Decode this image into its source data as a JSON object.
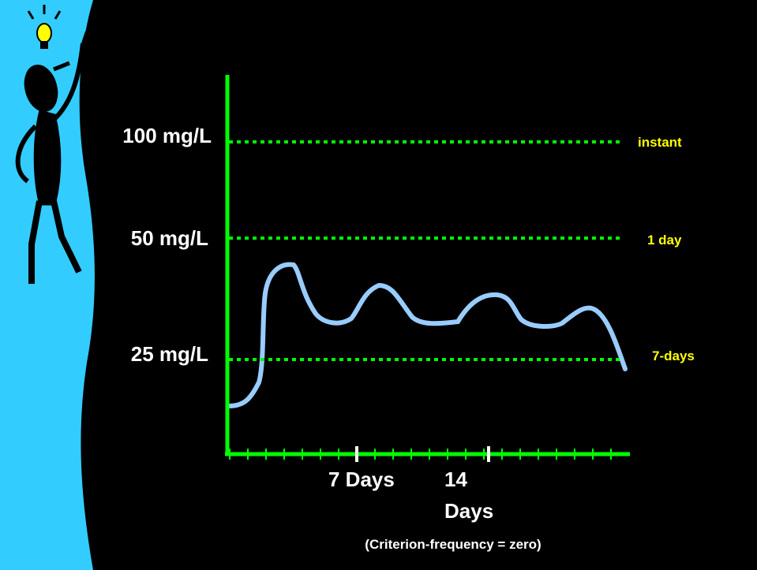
{
  "thresholds": [
    {
      "label": "100 mg/L",
      "duration": "instant"
    },
    {
      "label": "50 mg/L",
      "duration": "1 day"
    },
    {
      "label": "25 mg/L",
      "duration": "7-days"
    }
  ],
  "x_labels": [
    [
      "7 Days"
    ],
    [
      "14",
      "Days"
    ]
  ],
  "caption": "(Criterion-frequency = zero)"
}
